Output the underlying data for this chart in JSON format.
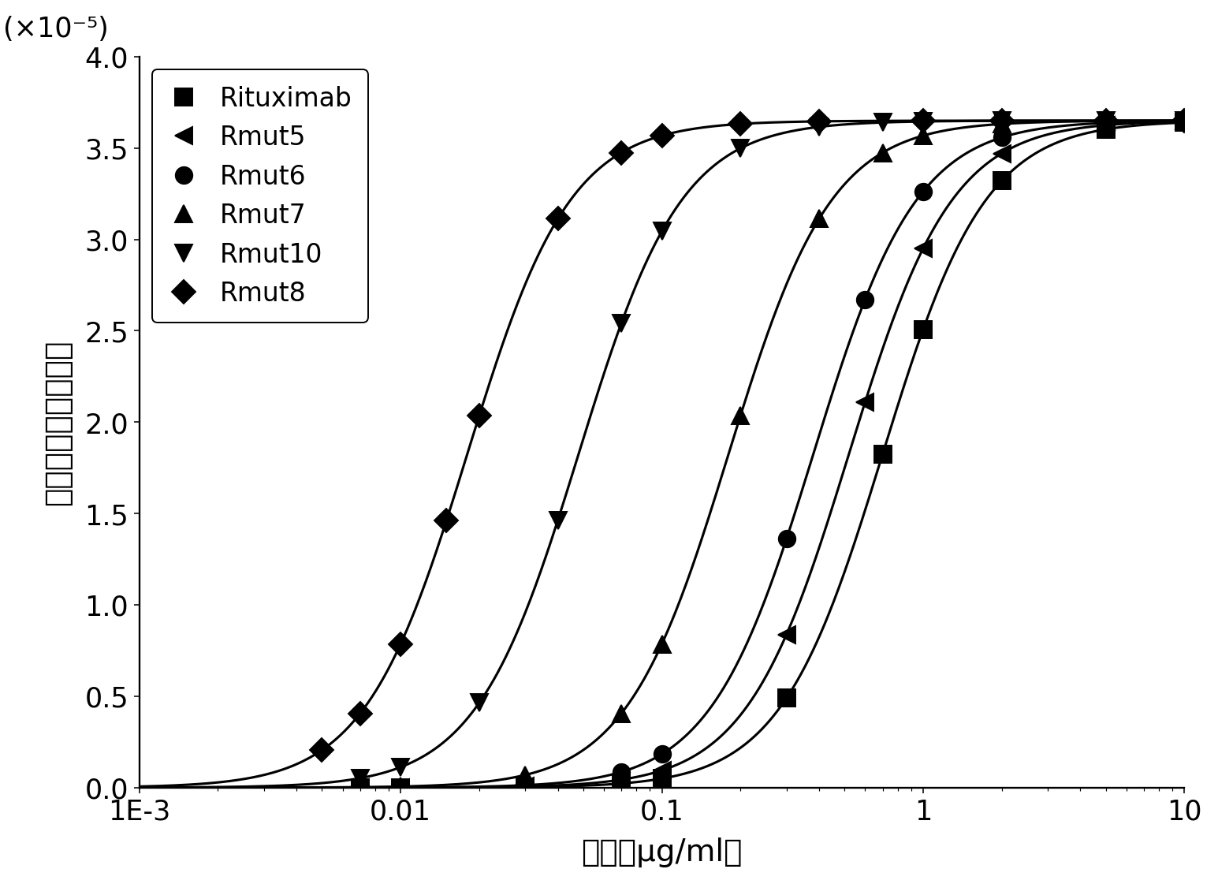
{
  "series": [
    {
      "label": "Rituximab",
      "marker": "s",
      "ec50": 0.7,
      "hill": 2.2,
      "ymax": 3.65e-05,
      "x_data": [
        0.007,
        0.01,
        0.03,
        0.07,
        0.1,
        0.3,
        0.7,
        1.0,
        2.0,
        5.0,
        10.0
      ]
    },
    {
      "label": "Rmut5",
      "marker": "<",
      "ec50": 0.52,
      "hill": 2.2,
      "ymax": 3.65e-05,
      "x_data": [
        0.007,
        0.01,
        0.03,
        0.07,
        0.1,
        0.3,
        0.6,
        1.0,
        2.0,
        5.0,
        10.0
      ]
    },
    {
      "label": "Rmut6",
      "marker": "o",
      "ec50": 0.38,
      "hill": 2.2,
      "ymax": 3.65e-05,
      "x_data": [
        0.007,
        0.01,
        0.03,
        0.07,
        0.1,
        0.3,
        0.6,
        1.0,
        2.0,
        5.0,
        10.0
      ]
    },
    {
      "label": "Rmut7",
      "marker": "^",
      "ec50": 0.18,
      "hill": 2.2,
      "ymax": 3.65e-05,
      "x_data": [
        0.007,
        0.01,
        0.03,
        0.07,
        0.1,
        0.2,
        0.4,
        0.7,
        1.0,
        2.0,
        5.0,
        10.0
      ]
    },
    {
      "label": "Rmut10",
      "marker": "v",
      "ec50": 0.048,
      "hill": 2.2,
      "ymax": 3.65e-05,
      "x_data": [
        0.007,
        0.01,
        0.02,
        0.04,
        0.07,
        0.1,
        0.2,
        0.4,
        0.7,
        1.0,
        2.0,
        5.0,
        10.0
      ]
    },
    {
      "label": "Rmut8",
      "marker": "D",
      "ec50": 0.018,
      "hill": 2.2,
      "ymax": 3.65e-05,
      "x_data": [
        0.005,
        0.007,
        0.01,
        0.015,
        0.02,
        0.04,
        0.07,
        0.1,
        0.2,
        0.4,
        1.0,
        2.0,
        5.0,
        10.0
      ]
    }
  ],
  "xmin": 0.001,
  "xmax": 10,
  "ymin": 0.0,
  "ymax": 4e-05,
  "yticks": [
    0.0,
    5e-06,
    1e-05,
    1.5e-05,
    2e-05,
    2.5e-05,
    3e-05,
    3.5e-05,
    4e-05
  ],
  "ytick_labels": [
    "0.0",
    "0.5",
    "1.0",
    "1.5",
    "2.0",
    "2.5",
    "3.0",
    "3.5",
    "4.0"
  ],
  "xlabel": "浓度（μg/ml）",
  "ylabel_main": "平均细胞结合分子数",
  "ylabel_unit": "(×10⁻⁵)",
  "color": "#000000",
  "marker_size": 11,
  "line_width": 1.6,
  "legend_order": [
    "Rituximab",
    "Rmut5",
    "Rmut6",
    "Rmut7",
    "Rmut10",
    "Rmut8"
  ],
  "figwidth": 11.04,
  "figheight": 8.01,
  "dpi": 140
}
